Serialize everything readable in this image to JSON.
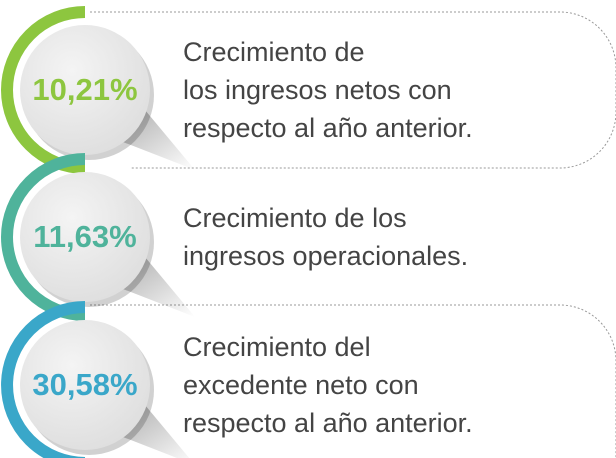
{
  "items": [
    {
      "value": "10,21%",
      "color": "#8dc63f",
      "description": [
        "Crecimiento de",
        "los ingresos netos con",
        "respecto al año anterior."
      ]
    },
    {
      "value": "11,63%",
      "color": "#4fb39b",
      "description": [
        "Crecimiento de los",
        "ingresos operacionales."
      ]
    },
    {
      "value": "30,58%",
      "color": "#3aa7c9",
      "description": [
        "Crecimiento del",
        "excedente neto con",
        "respecto al año anterior."
      ]
    }
  ]
}
